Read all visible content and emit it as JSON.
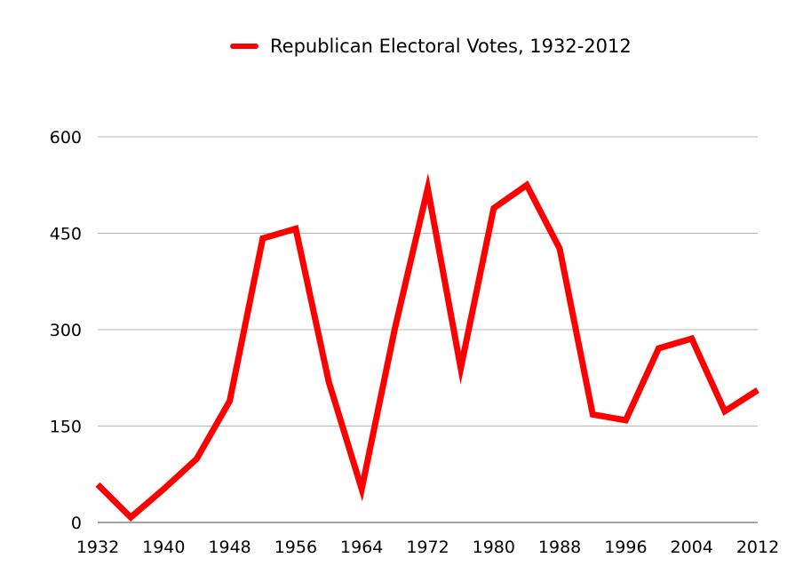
{
  "chart_data": {
    "type": "line",
    "title": "",
    "xlabel": "",
    "ylabel": "",
    "legend_position": "top-center",
    "grid": true,
    "ylim": [
      0,
      600
    ],
    "yticks": [
      0,
      150,
      300,
      450,
      600
    ],
    "xlim": [
      1932,
      2012
    ],
    "xticks": [
      1932,
      1940,
      1948,
      1956,
      1964,
      1972,
      1980,
      1988,
      1996,
      2004,
      2012
    ],
    "x": [
      1932,
      1936,
      1940,
      1944,
      1948,
      1952,
      1956,
      1960,
      1964,
      1968,
      1972,
      1976,
      1980,
      1984,
      1988,
      1992,
      1996,
      2000,
      2004,
      2008,
      2012
    ],
    "series": [
      {
        "name": "Republican Electoral Votes, 1932-2012",
        "color": "#ff0000",
        "values": [
          59,
          8,
          52,
          99,
          189,
          442,
          457,
          219,
          52,
          301,
          520,
          240,
          489,
          525,
          426,
          168,
          159,
          271,
          286,
          173,
          206
        ]
      }
    ]
  }
}
